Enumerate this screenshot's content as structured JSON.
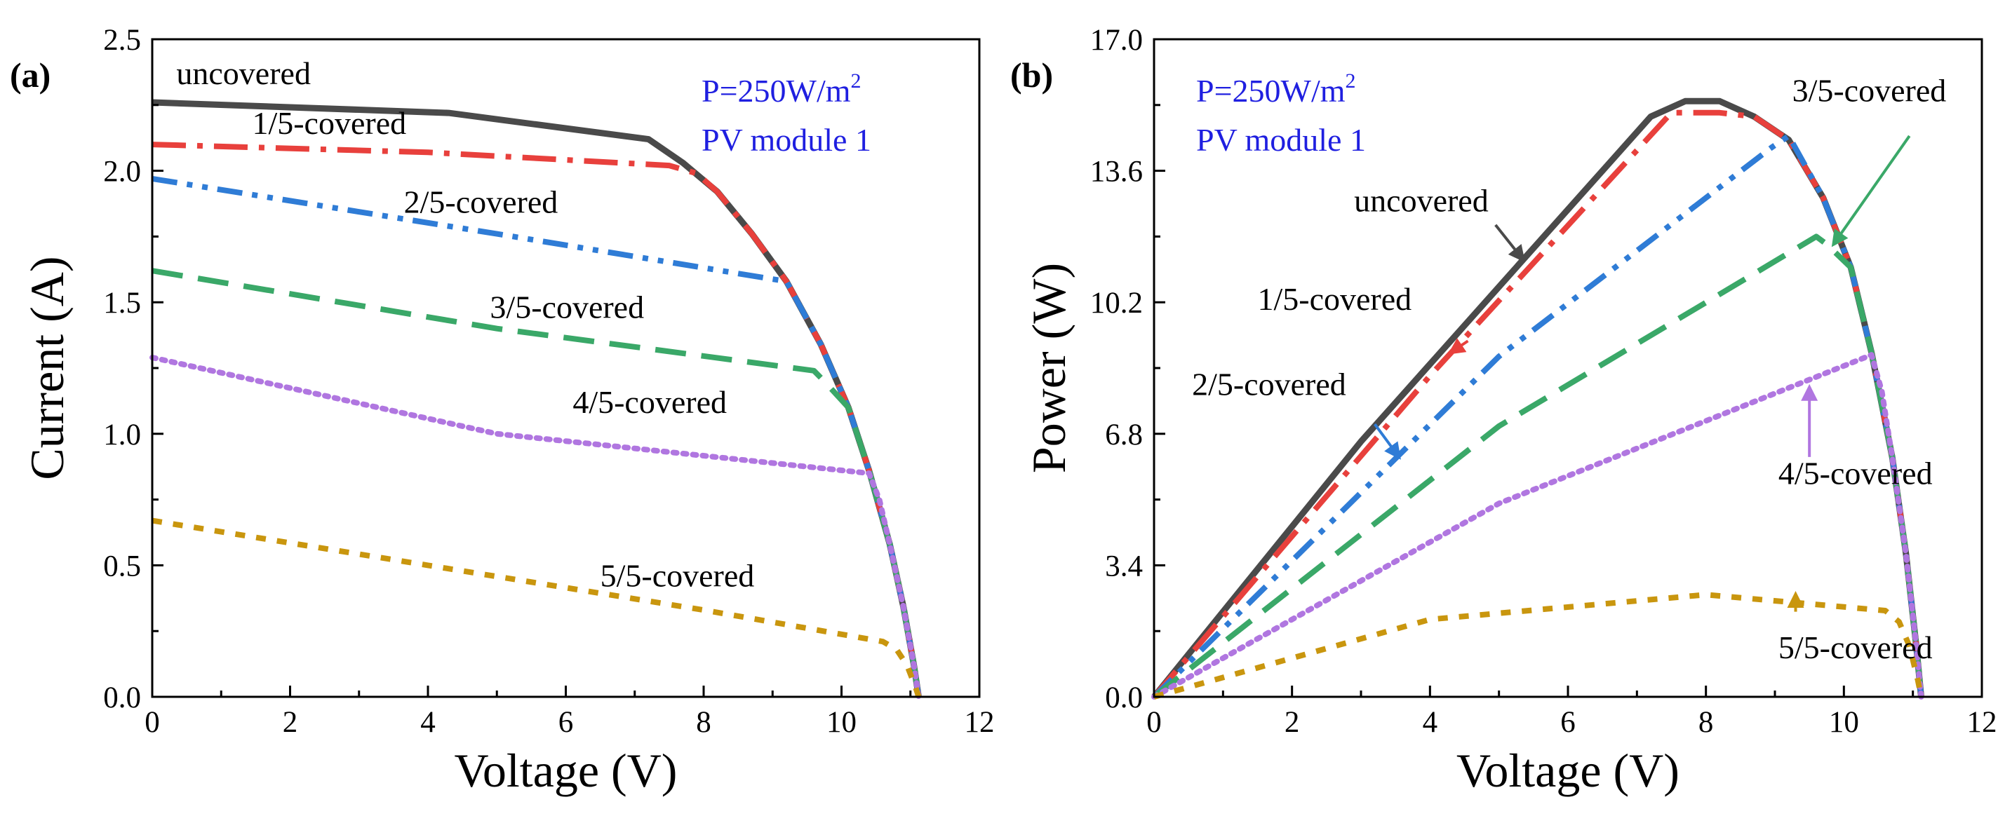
{
  "figure": {
    "colors": {
      "uncovered": "#4a4a4a",
      "c1": "#e8403c",
      "c2": "#2f7cd6",
      "c3": "#3aa868",
      "c4": "#b076e0",
      "c5": "#c9960e",
      "info": "#1f1fe0"
    }
  },
  "chart_data": [
    {
      "type": "line",
      "panel": "(a)",
      "xlabel": "Voltage (V)",
      "ylabel": "Current (A)",
      "xlim": [
        0,
        12
      ],
      "ylim": [
        0,
        2.5
      ],
      "xticks": [
        "0",
        "2",
        "4",
        "6",
        "8",
        "10",
        "12"
      ],
      "yticks": [
        "0.0",
        "0.5",
        "1.0",
        "1.5",
        "2.0",
        "2.5"
      ],
      "info_lines": [
        "P=250W/m",
        "PV module 1"
      ],
      "info_sup": "2",
      "series": [
        {
          "name": "uncovered",
          "key": "uncovered",
          "dash": "solid",
          "x": [
            0,
            4.3,
            7.2,
            7.7,
            8.2,
            8.7,
            9.2,
            9.7,
            10.1,
            10.4,
            10.7,
            10.9,
            11.05,
            11.12
          ],
          "y": [
            2.26,
            2.22,
            2.12,
            2.03,
            1.92,
            1.76,
            1.58,
            1.34,
            1.1,
            0.86,
            0.58,
            0.34,
            0.12,
            0.0
          ]
        },
        {
          "name": "1/5-covered",
          "key": "c1",
          "dash": "dashdot",
          "x": [
            0,
            4,
            7.5,
            7.9,
            8.2,
            8.7,
            9.2,
            9.7,
            10.1,
            10.4,
            10.7,
            10.9,
            11.05,
            11.12
          ],
          "y": [
            2.1,
            2.07,
            2.02,
            1.99,
            1.92,
            1.76,
            1.58,
            1.34,
            1.1,
            0.86,
            0.58,
            0.34,
            0.12,
            0.0
          ]
        },
        {
          "name": "2/5-covered",
          "key": "c2",
          "dash": "dashdotdot",
          "x": [
            0,
            5,
            8.95,
            9.2,
            9.7,
            10.1,
            10.4,
            10.7,
            10.9,
            11.05,
            11.12
          ],
          "y": [
            1.97,
            1.76,
            1.59,
            1.58,
            1.34,
            1.1,
            0.86,
            0.58,
            0.34,
            0.12,
            0.0
          ]
        },
        {
          "name": "3/5-covered",
          "key": "c3",
          "dash": "longdash",
          "x": [
            0,
            5,
            9.6,
            9.75,
            10.1,
            10.4,
            10.7,
            10.9,
            11.05,
            11.12
          ],
          "y": [
            1.62,
            1.4,
            1.24,
            1.2,
            1.1,
            0.86,
            0.58,
            0.34,
            0.12,
            0.0
          ]
        },
        {
          "name": "4/5-covered",
          "key": "c4",
          "dash": "dot",
          "x": [
            0,
            5,
            10.4,
            10.55,
            10.7,
            10.9,
            11.05,
            11.12
          ],
          "y": [
            1.29,
            1.0,
            0.85,
            0.75,
            0.58,
            0.34,
            0.12,
            0.0
          ]
        },
        {
          "name": "5/5-covered",
          "key": "c5",
          "dash": "shortdash",
          "x": [
            0,
            4,
            8,
            10.6,
            10.8,
            10.95,
            11.07,
            11.12
          ],
          "y": [
            0.67,
            0.5,
            0.33,
            0.21,
            0.18,
            0.12,
            0.04,
            0.0
          ]
        }
      ],
      "labels": [
        {
          "text": "uncovered",
          "at": [
            0.35,
            2.33
          ],
          "color": "#000000"
        },
        {
          "text": "1/5-covered",
          "at": [
            1.45,
            2.14
          ],
          "color": "#000000"
        },
        {
          "text": "2/5-covered",
          "at": [
            3.65,
            1.84
          ],
          "color": "#000000"
        },
        {
          "text": "3/5-covered",
          "at": [
            4.9,
            1.44
          ],
          "color": "#000000"
        },
        {
          "text": "4/5-covered",
          "at": [
            6.1,
            1.08
          ],
          "color": "#000000"
        },
        {
          "text": "5/5-covered",
          "at": [
            6.5,
            0.42
          ],
          "color": "#000000"
        }
      ],
      "arrows": []
    },
    {
      "type": "line",
      "panel": "(b)",
      "xlabel": "Voltage (V)",
      "ylabel": "Power (W)",
      "xlim": [
        0,
        12
      ],
      "ylim": [
        0,
        17
      ],
      "xticks": [
        "0",
        "2",
        "4",
        "6",
        "8",
        "10",
        "12"
      ],
      "yticks": [
        "0.0",
        "3.4",
        "6.8",
        "10.2",
        "13.6",
        "17.0"
      ],
      "info_lines": [
        "P=250W/m",
        "PV module 1"
      ],
      "info_sup": "2",
      "series": [
        {
          "name": "uncovered",
          "key": "uncovered",
          "dash": "solid",
          "x": [
            0,
            3,
            7.2,
            7.7,
            8.2,
            8.7,
            9.2,
            9.7,
            10.1,
            10.4,
            10.7,
            10.9,
            11.05,
            11.12
          ],
          "y": [
            0,
            6.6,
            15.0,
            15.4,
            15.4,
            15.0,
            14.4,
            12.9,
            11.1,
            8.9,
            6.2,
            3.7,
            1.3,
            0.0
          ]
        },
        {
          "name": "1/5-covered",
          "key": "c1",
          "dash": "dashdot",
          "x": [
            0,
            4,
            7.5,
            7.9,
            8.2,
            8.7,
            9.2,
            9.7,
            10.1,
            10.4,
            10.7,
            10.9,
            11.05,
            11.12
          ],
          "y": [
            0,
            8.3,
            15.1,
            15.1,
            15.1,
            15.0,
            14.4,
            12.9,
            11.1,
            8.9,
            6.2,
            3.7,
            1.3,
            0.0
          ]
        },
        {
          "name": "2/5-covered",
          "key": "c2",
          "dash": "dashdotdot",
          "x": [
            0,
            5,
            8.95,
            9.2,
            9.7,
            10.1,
            10.4,
            10.7,
            10.9,
            11.05,
            11.12
          ],
          "y": [
            0,
            8.8,
            14.2,
            14.5,
            12.9,
            11.1,
            8.9,
            6.2,
            3.7,
            1.3,
            0.0
          ]
        },
        {
          "name": "3/5-covered",
          "key": "c3",
          "dash": "longdash",
          "x": [
            0,
            5,
            9.6,
            9.75,
            10.1,
            10.4,
            10.7,
            10.9,
            11.05,
            11.12
          ],
          "y": [
            0,
            7.0,
            11.9,
            11.7,
            11.1,
            8.9,
            6.2,
            3.7,
            1.3,
            0.0
          ]
        },
        {
          "name": "4/5-covered",
          "key": "c4",
          "dash": "dot",
          "x": [
            0,
            5,
            10.4,
            10.55,
            10.7,
            10.9,
            11.05,
            11.12
          ],
          "y": [
            0,
            5.0,
            8.84,
            7.9,
            6.2,
            3.7,
            1.3,
            0.0
          ]
        },
        {
          "name": "5/5-covered",
          "key": "c5",
          "dash": "shortdash",
          "x": [
            0,
            4,
            8,
            10.6,
            10.8,
            10.95,
            11.07,
            11.12
          ],
          "y": [
            0,
            2.0,
            2.64,
            2.23,
            1.94,
            1.31,
            0.44,
            0.0
          ]
        }
      ],
      "labels": [
        {
          "text": "uncovered",
          "at": [
            2.9,
            12.55
          ],
          "color": "#000000"
        },
        {
          "text": "3/5-covered",
          "at": [
            9.25,
            15.4
          ],
          "color": "#000000"
        },
        {
          "text": "1/5-covered",
          "at": [
            1.5,
            10.0
          ],
          "color": "#000000"
        },
        {
          "text": "2/5-covered",
          "at": [
            0.55,
            7.8
          ],
          "color": "#000000"
        },
        {
          "text": "4/5-covered",
          "at": [
            9.05,
            5.5
          ],
          "color": "#000000"
        },
        {
          "text": "5/5-covered",
          "at": [
            9.05,
            1.0
          ],
          "color": "#000000"
        }
      ],
      "arrows": [
        {
          "key": "uncovered",
          "from": [
            4.95,
            12.2
          ],
          "to": [
            5.35,
            11.3
          ]
        },
        {
          "key": "c3",
          "from": [
            10.95,
            14.5
          ],
          "to": [
            9.85,
            11.7
          ]
        },
        {
          "key": "c1",
          "from": [
            4.55,
            9.2
          ],
          "to": [
            4.3,
            8.9
          ]
        },
        {
          "key": "c2",
          "from": [
            3.2,
            7.05
          ],
          "to": [
            3.55,
            6.2
          ]
        },
        {
          "key": "c4",
          "from": [
            9.5,
            6.2
          ],
          "to": [
            9.5,
            8.0
          ]
        },
        {
          "key": "c5",
          "from": [
            9.3,
            2.2
          ],
          "to": [
            9.3,
            2.65
          ]
        }
      ]
    }
  ]
}
